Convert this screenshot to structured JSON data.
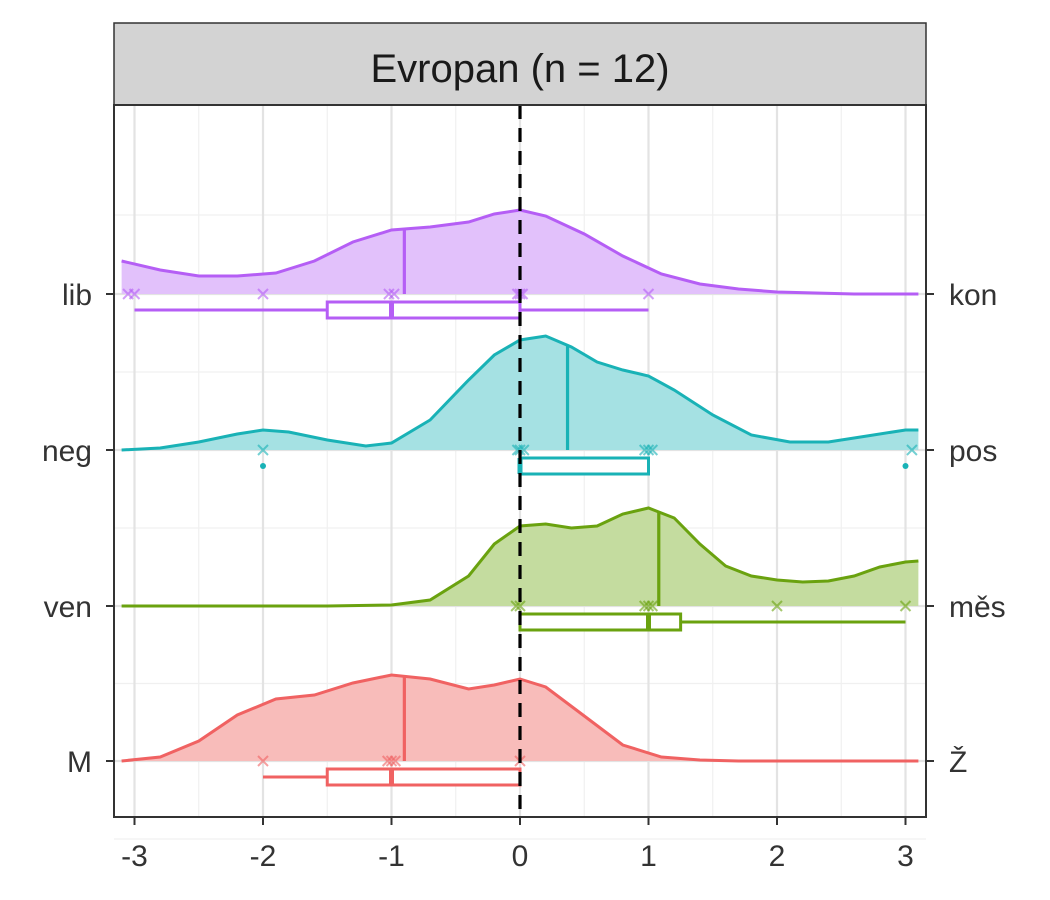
{
  "chart_data": {
    "type": "density-ridgeline",
    "facet_title": "Evropan (n = 12)",
    "xlim": [
      -3.1,
      3.1
    ],
    "x_ticks": [
      -3,
      -2,
      -1,
      0,
      1,
      2,
      3
    ],
    "x_tick_labels": [
      "-3",
      "-2",
      "-1",
      "0",
      "1",
      "2",
      "3"
    ],
    "reference_line_x": 0,
    "grid": true,
    "series": [
      {
        "left_label": "lib",
        "right_label": "kon",
        "color": "#b55ef5",
        "fill": "#e2c1fb",
        "mean": -0.9,
        "box": {
          "whisker_low": -3,
          "q1": -1.5,
          "median": -1,
          "q3": 0,
          "whisker_high": 1
        },
        "points": [
          -3.05,
          -3,
          -2,
          -1.02,
          -0.98,
          -0.02,
          0,
          0.02,
          1
        ],
        "outliers": [],
        "density": [
          [
            -3.1,
            0.33
          ],
          [
            -2.8,
            0.24
          ],
          [
            -2.5,
            0.18
          ],
          [
            -2.2,
            0.18
          ],
          [
            -1.9,
            0.21
          ],
          [
            -1.6,
            0.33
          ],
          [
            -1.3,
            0.52
          ],
          [
            -1.0,
            0.64
          ],
          [
            -0.7,
            0.67
          ],
          [
            -0.4,
            0.72
          ],
          [
            -0.2,
            0.8
          ],
          [
            0.0,
            0.84
          ],
          [
            0.2,
            0.78
          ],
          [
            0.5,
            0.6
          ],
          [
            0.8,
            0.38
          ],
          [
            1.1,
            0.2
          ],
          [
            1.4,
            0.1
          ],
          [
            1.7,
            0.05
          ],
          [
            2.0,
            0.02
          ],
          [
            2.3,
            0.01
          ],
          [
            2.6,
            0.0
          ],
          [
            3.1,
            0.0
          ]
        ]
      },
      {
        "left_label": "neg",
        "right_label": "pos",
        "color": "#19b2b6",
        "fill": "#a5e1e3",
        "mean": 0.37,
        "box": {
          "whisker_low": 0,
          "q1": 0,
          "median": 0,
          "q3": 1,
          "whisker_high": 1
        },
        "points": [
          -2,
          -0.02,
          0,
          0.03,
          0.97,
          1,
          1.03,
          3.05
        ],
        "outliers": [
          -2,
          3
        ],
        "density": [
          [
            -3.1,
            0.0
          ],
          [
            -2.8,
            0.02
          ],
          [
            -2.5,
            0.08
          ],
          [
            -2.2,
            0.16
          ],
          [
            -2.0,
            0.2
          ],
          [
            -1.8,
            0.18
          ],
          [
            -1.5,
            0.1
          ],
          [
            -1.2,
            0.04
          ],
          [
            -1.0,
            0.07
          ],
          [
            -0.7,
            0.3
          ],
          [
            -0.4,
            0.7
          ],
          [
            -0.2,
            0.95
          ],
          [
            0.0,
            1.1
          ],
          [
            0.2,
            1.14
          ],
          [
            0.4,
            1.03
          ],
          [
            0.6,
            0.88
          ],
          [
            0.8,
            0.8
          ],
          [
            1.0,
            0.74
          ],
          [
            1.2,
            0.6
          ],
          [
            1.5,
            0.35
          ],
          [
            1.8,
            0.15
          ],
          [
            2.1,
            0.08
          ],
          [
            2.4,
            0.08
          ],
          [
            2.7,
            0.14
          ],
          [
            3.0,
            0.2
          ],
          [
            3.1,
            0.2
          ]
        ]
      },
      {
        "left_label": "ven",
        "right_label": "měs",
        "color": "#6aa20f",
        "fill": "#c4dc9f",
        "mean": 1.08,
        "box": {
          "whisker_low": 0,
          "q1": 0,
          "median": 1,
          "q3": 1.25,
          "whisker_high": 3
        },
        "points": [
          -0.03,
          0,
          0.97,
          1,
          1.03,
          2,
          3
        ],
        "outliers": [],
        "density": [
          [
            -3.1,
            0.0
          ],
          [
            -1.5,
            0.0
          ],
          [
            -1.0,
            0.01
          ],
          [
            -0.7,
            0.06
          ],
          [
            -0.4,
            0.3
          ],
          [
            -0.2,
            0.62
          ],
          [
            0.0,
            0.8
          ],
          [
            0.2,
            0.82
          ],
          [
            0.4,
            0.78
          ],
          [
            0.6,
            0.8
          ],
          [
            0.8,
            0.92
          ],
          [
            1.0,
            0.98
          ],
          [
            1.2,
            0.88
          ],
          [
            1.4,
            0.62
          ],
          [
            1.6,
            0.4
          ],
          [
            1.8,
            0.3
          ],
          [
            2.0,
            0.26
          ],
          [
            2.2,
            0.24
          ],
          [
            2.4,
            0.25
          ],
          [
            2.6,
            0.3
          ],
          [
            2.8,
            0.39
          ],
          [
            3.0,
            0.44
          ],
          [
            3.1,
            0.45
          ]
        ]
      },
      {
        "left_label": "M",
        "right_label": "Ž",
        "color": "#f06262",
        "fill": "#f8bcba",
        "mean": -0.9,
        "box": {
          "whisker_low": -2,
          "q1": -1.5,
          "median": -1,
          "q3": 0,
          "whisker_high": 0
        },
        "points": [
          -2,
          -1.03,
          -1,
          -0.97,
          0
        ],
        "outliers": [],
        "density": [
          [
            -3.1,
            0.0
          ],
          [
            -2.8,
            0.04
          ],
          [
            -2.5,
            0.2
          ],
          [
            -2.2,
            0.46
          ],
          [
            -1.9,
            0.62
          ],
          [
            -1.6,
            0.66
          ],
          [
            -1.3,
            0.78
          ],
          [
            -1.0,
            0.86
          ],
          [
            -0.7,
            0.82
          ],
          [
            -0.4,
            0.72
          ],
          [
            -0.2,
            0.76
          ],
          [
            0.0,
            0.82
          ],
          [
            0.2,
            0.74
          ],
          [
            0.5,
            0.45
          ],
          [
            0.8,
            0.16
          ],
          [
            1.1,
            0.04
          ],
          [
            1.4,
            0.01
          ],
          [
            1.7,
            0.0
          ],
          [
            3.1,
            0.0
          ]
        ]
      }
    ]
  }
}
